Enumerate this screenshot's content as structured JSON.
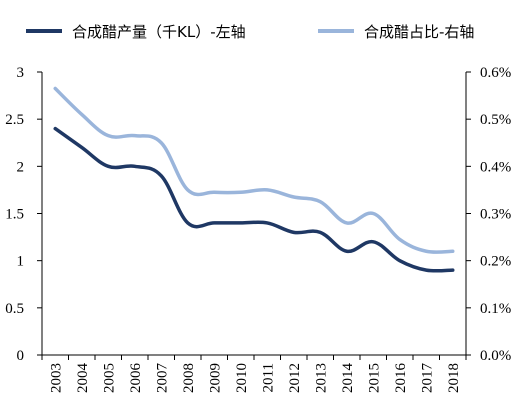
{
  "chart_data": {
    "type": "line",
    "categories": [
      "2003",
      "2004",
      "2005",
      "2006",
      "2007",
      "2008",
      "2009",
      "2010",
      "2011",
      "2012",
      "2013",
      "2014",
      "2015",
      "2016",
      "2017",
      "2018"
    ],
    "series": [
      {
        "name": "合成醋产量（千KL）-左轴",
        "axis": "left",
        "color": "#1f3864",
        "values": [
          2.4,
          2.2,
          2.0,
          2.0,
          1.9,
          1.4,
          1.4,
          1.4,
          1.4,
          1.3,
          1.3,
          1.1,
          1.2,
          1.0,
          0.9,
          0.9
        ]
      },
      {
        "name": "合成醋占比-右轴",
        "axis": "right",
        "color": "#9ab5db",
        "values": [
          0.565,
          0.51,
          0.465,
          0.465,
          0.45,
          0.35,
          0.345,
          0.345,
          0.35,
          0.335,
          0.325,
          0.28,
          0.3,
          0.245,
          0.22,
          0.22
        ]
      }
    ],
    "y_left": {
      "range": [
        0,
        3
      ],
      "ticks": [
        "0",
        "0.5",
        "1",
        "1.5",
        "2",
        "2.5",
        "3"
      ]
    },
    "y_right": {
      "range": [
        0,
        0.6
      ],
      "ticks": [
        "0.0%",
        "0.1%",
        "0.2%",
        "0.3%",
        "0.4%",
        "0.5%",
        "0.6%"
      ]
    },
    "title": "",
    "xlabel": "",
    "grid": false,
    "legend_position": "top"
  }
}
